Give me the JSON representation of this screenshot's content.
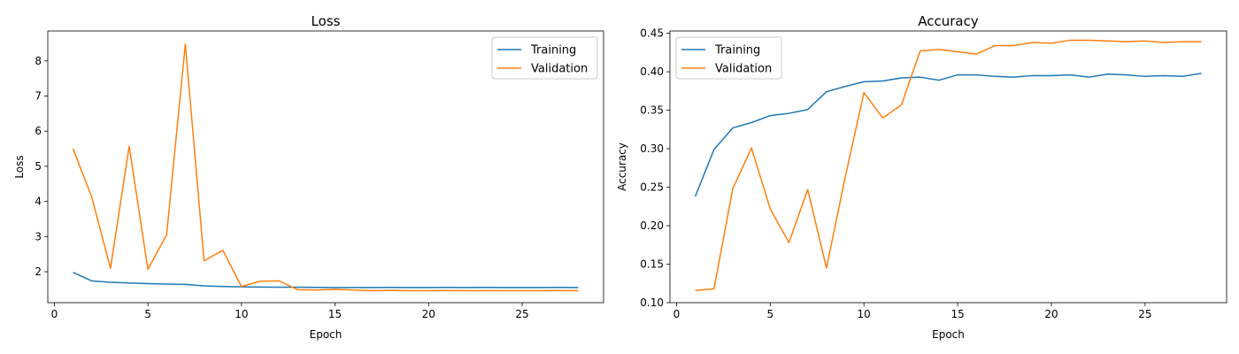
{
  "chart_data": [
    {
      "type": "line",
      "title": "Loss",
      "xlabel": "Epoch",
      "ylabel": "Loss",
      "xlim": [
        -0.35,
        29.35
      ],
      "ylim": [
        1.12,
        8.85
      ],
      "xticks": [
        0,
        5,
        10,
        15,
        20,
        25
      ],
      "yticks": [
        2,
        3,
        4,
        5,
        6,
        7,
        8
      ],
      "grid": false,
      "legend_position": "top-right",
      "x": [
        1,
        2,
        3,
        4,
        5,
        6,
        7,
        8,
        9,
        10,
        11,
        12,
        13,
        14,
        15,
        16,
        17,
        18,
        19,
        20,
        21,
        22,
        23,
        24,
        25,
        26,
        27,
        28
      ],
      "series": [
        {
          "name": "Training",
          "color": "#1f77b4",
          "values": [
            1.98,
            1.74,
            1.7,
            1.68,
            1.66,
            1.65,
            1.64,
            1.6,
            1.58,
            1.57,
            1.565,
            1.56,
            1.56,
            1.555,
            1.55,
            1.55,
            1.55,
            1.555,
            1.55,
            1.55,
            1.555,
            1.55,
            1.555,
            1.55,
            1.55,
            1.55,
            1.555,
            1.55
          ]
        },
        {
          "name": "Validation",
          "color": "#ff7f0e",
          "values": [
            5.5,
            4.12,
            2.1,
            5.57,
            2.07,
            3.05,
            8.48,
            2.31,
            2.61,
            1.58,
            1.73,
            1.74,
            1.49,
            1.48,
            1.5,
            1.48,
            1.46,
            1.47,
            1.46,
            1.46,
            1.465,
            1.46,
            1.46,
            1.46,
            1.46,
            1.46,
            1.465,
            1.46
          ]
        }
      ]
    },
    {
      "type": "line",
      "title": "Accuracy",
      "xlabel": "Epoch",
      "ylabel": "Accuracy",
      "xlim": [
        -0.35,
        29.35
      ],
      "ylim": [
        0.1,
        0.453
      ],
      "xticks": [
        0,
        5,
        10,
        15,
        20,
        25
      ],
      "yticks": [
        0.1,
        0.15,
        0.2,
        0.25,
        0.3,
        0.35,
        0.4,
        0.45
      ],
      "ytick_labels": [
        "0.10",
        "0.15",
        "0.20",
        "0.25",
        "0.30",
        "0.35",
        "0.40",
        "0.45"
      ],
      "grid": false,
      "legend_position": "top-left",
      "x": [
        1,
        2,
        3,
        4,
        5,
        6,
        7,
        8,
        9,
        10,
        11,
        12,
        13,
        14,
        15,
        16,
        17,
        18,
        19,
        20,
        21,
        22,
        23,
        24,
        25,
        26,
        27,
        28
      ],
      "series": [
        {
          "name": "Training",
          "color": "#1f77b4",
          "values": [
            0.238,
            0.299,
            0.327,
            0.334,
            0.343,
            0.346,
            0.351,
            0.374,
            0.381,
            0.387,
            0.388,
            0.392,
            0.393,
            0.389,
            0.396,
            0.396,
            0.394,
            0.393,
            0.395,
            0.395,
            0.396,
            0.393,
            0.397,
            0.396,
            0.394,
            0.395,
            0.394,
            0.398
          ]
        },
        {
          "name": "Validation",
          "color": "#ff7f0e",
          "values": [
            0.116,
            0.118,
            0.248,
            0.301,
            0.222,
            0.178,
            0.247,
            0.145,
            0.263,
            0.373,
            0.34,
            0.357,
            0.427,
            0.429,
            0.426,
            0.423,
            0.434,
            0.434,
            0.438,
            0.437,
            0.441,
            0.441,
            0.44,
            0.439,
            0.44,
            0.438,
            0.439,
            0.439
          ]
        }
      ]
    }
  ]
}
